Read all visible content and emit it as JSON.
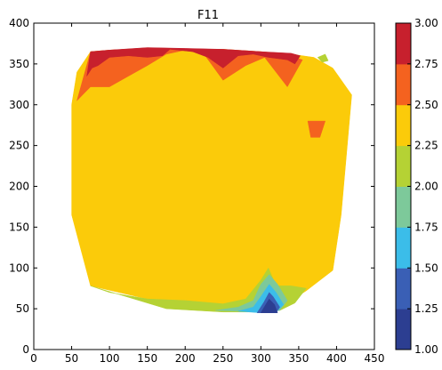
{
  "chart_data": {
    "type": "heatmap",
    "subtype": "filled-contour",
    "title": "F11",
    "xlim": [
      0,
      450
    ],
    "ylim": [
      0,
      400
    ],
    "x_ticks": [
      0,
      50,
      100,
      150,
      200,
      250,
      300,
      350,
      400,
      450
    ],
    "y_ticks": [
      0,
      50,
      100,
      150,
      200,
      250,
      300,
      350,
      400
    ],
    "grid": false,
    "colorbar": {
      "ticks": [
        "1.00",
        "1.25",
        "1.50",
        "1.75",
        "2.00",
        "2.25",
        "2.50",
        "2.75",
        "3.00"
      ],
      "levels": [
        1.0,
        1.25,
        1.5,
        1.75,
        2.0,
        2.25,
        2.5,
        2.75,
        3.0
      ],
      "colors": [
        "#2c3e91",
        "#3a5fb5",
        "#3bbde9",
        "#7dc99a",
        "#b5d234",
        "#fbcb0a",
        "#f4621f",
        "#c7202d"
      ]
    },
    "regions": [
      {
        "level": "2.25-2.50",
        "color": "#fbcb0a",
        "polygon": [
          [
            50,
            300
          ],
          [
            50,
            165
          ],
          [
            75,
            78
          ],
          [
            150,
            62
          ],
          [
            200,
            60
          ],
          [
            250,
            55
          ],
          [
            305,
            52
          ],
          [
            340,
            60
          ],
          [
            360,
            72
          ],
          [
            395,
            97
          ],
          [
            406,
            165
          ],
          [
            420,
            312
          ],
          [
            395,
            345
          ],
          [
            370,
            358
          ],
          [
            340,
            362
          ],
          [
            300,
            365
          ],
          [
            250,
            368
          ],
          [
            200,
            368
          ],
          [
            150,
            369
          ],
          [
            100,
            367
          ],
          [
            75,
            365
          ],
          [
            57,
            340
          ]
        ]
      },
      {
        "level": "2.00-2.25",
        "color": "#b5d234",
        "polygon": [
          [
            75,
            78
          ],
          [
            175,
            50
          ],
          [
            250,
            46
          ],
          [
            300,
            46
          ],
          [
            325,
            48
          ],
          [
            345,
            57
          ],
          [
            360,
            75
          ],
          [
            340,
            78
          ],
          [
            320,
            78
          ],
          [
            310,
            100
          ],
          [
            300,
            85
          ],
          [
            280,
            62
          ],
          [
            250,
            56
          ],
          [
            200,
            60
          ],
          [
            150,
            62
          ],
          [
            100,
            70
          ]
        ]
      },
      {
        "level": "2.00-2.25",
        "color": "#b5d234",
        "polygon": [
          [
            375,
            358
          ],
          [
            381,
            352
          ],
          [
            389,
            354
          ],
          [
            385,
            362
          ]
        ]
      },
      {
        "level": "1.75-2.00",
        "color": "#7dc99a",
        "polygon": [
          [
            240,
            48
          ],
          [
            300,
            46
          ],
          [
            325,
            48
          ],
          [
            335,
            60
          ],
          [
            322,
            80
          ],
          [
            311,
            92
          ],
          [
            300,
            80
          ],
          [
            290,
            60
          ],
          [
            270,
            52
          ]
        ]
      },
      {
        "level": "1.50-1.75",
        "color": "#3bbde9",
        "polygon": [
          [
            270,
            47
          ],
          [
            300,
            45
          ],
          [
            320,
            46
          ],
          [
            330,
            55
          ],
          [
            320,
            70
          ],
          [
            311,
            80
          ],
          [
            300,
            65
          ],
          [
            290,
            52
          ]
        ]
      },
      {
        "level": "1.25-1.50",
        "color": "#3a5fb5",
        "polygon": [
          [
            295,
            45
          ],
          [
            320,
            45
          ],
          [
            325,
            52
          ],
          [
            316,
            65
          ],
          [
            311,
            70
          ],
          [
            304,
            58
          ]
        ]
      },
      {
        "level": "1.00-1.25",
        "color": "#2c3e91",
        "polygon": [
          [
            300,
            45
          ],
          [
            322,
            45
          ],
          [
            318,
            55
          ],
          [
            311,
            62
          ],
          [
            305,
            53
          ]
        ]
      },
      {
        "level": "2.50-2.75",
        "color": "#f4621f",
        "polygon": [
          [
            57,
            305
          ],
          [
            75,
            322
          ],
          [
            100,
            322
          ],
          [
            125,
            335
          ],
          [
            150,
            348
          ],
          [
            175,
            362
          ],
          [
            200,
            367
          ],
          [
            225,
            362
          ],
          [
            250,
            330
          ],
          [
            280,
            348
          ],
          [
            305,
            358
          ],
          [
            335,
            322
          ],
          [
            355,
            355
          ],
          [
            330,
            362
          ],
          [
            300,
            365
          ],
          [
            250,
            368
          ],
          [
            200,
            368
          ],
          [
            150,
            369
          ],
          [
            100,
            367
          ],
          [
            75,
            365
          ]
        ]
      },
      {
        "level": "2.50-2.75",
        "color": "#f4621f",
        "polygon": [
          [
            362,
            280
          ],
          [
            385,
            280
          ],
          [
            378,
            260
          ],
          [
            366,
            260
          ]
        ]
      },
      {
        "level": "2.75-3.00",
        "color": "#c7202d",
        "polygon": [
          [
            75,
            365
          ],
          [
            100,
            367
          ],
          [
            150,
            370
          ],
          [
            200,
            369
          ],
          [
            250,
            368
          ],
          [
            300,
            365
          ],
          [
            340,
            363
          ],
          [
            352,
            360
          ],
          [
            345,
            350
          ],
          [
            335,
            355
          ],
          [
            310,
            358
          ],
          [
            290,
            362
          ],
          [
            270,
            360
          ],
          [
            250,
            345
          ],
          [
            230,
            358
          ],
          [
            210,
            365
          ],
          [
            180,
            368
          ],
          [
            170,
            360
          ],
          [
            150,
            358
          ],
          [
            125,
            360
          ],
          [
            100,
            358
          ],
          [
            85,
            348
          ],
          [
            77,
            345
          ],
          [
            70,
            335
          ]
        ]
      }
    ]
  }
}
